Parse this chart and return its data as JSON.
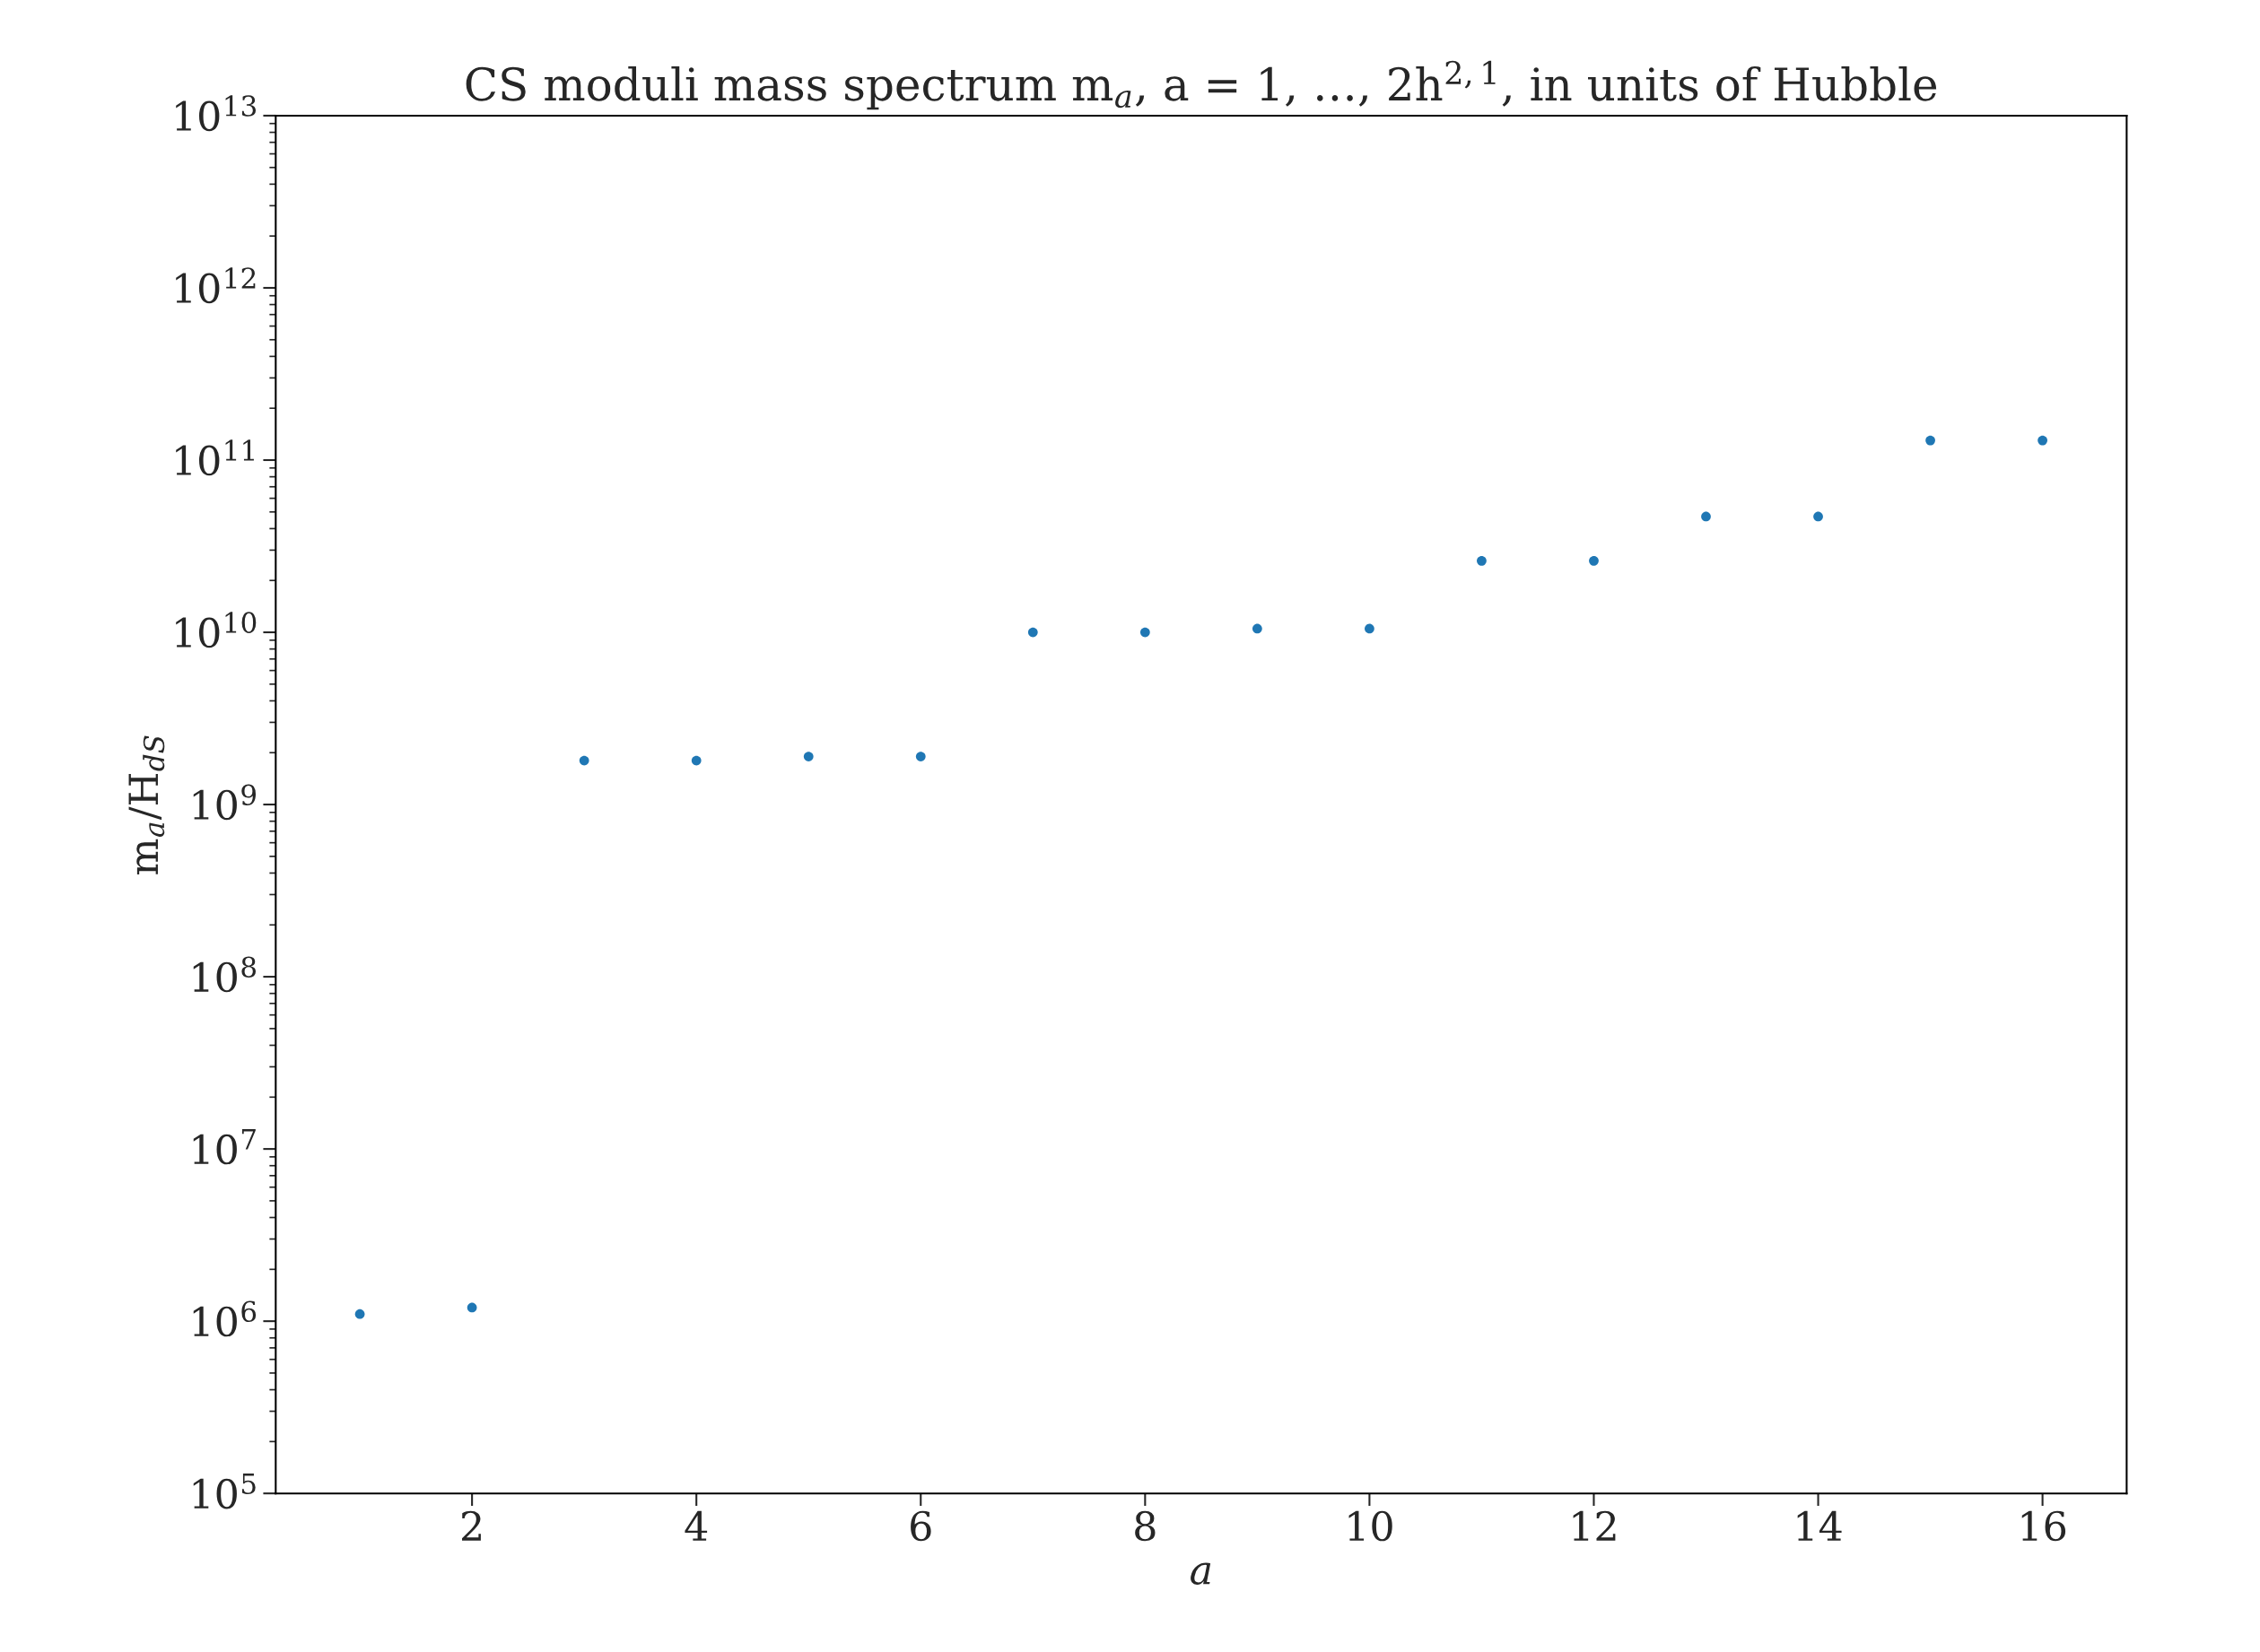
{
  "chart_data": {
    "type": "scatter",
    "title": "CS moduli mass spectrum m$_{a}$, a = 1, …, 2h$^{2,1}$, in units of Hubble",
    "xlabel": "a",
    "ylabel": "m$_{a}$/H$_{dS}$",
    "x": [
      1,
      2,
      3,
      4,
      5,
      6,
      7,
      8,
      9,
      10,
      11,
      12,
      13,
      14,
      15,
      16
    ],
    "series": [
      {
        "color": "#1f77b4",
        "values": [
          1100000.0,
          1200000.0,
          1800000000.0,
          1800000000.0,
          1900000000.0,
          1900000000.0,
          10000000000.0,
          10000000000.0,
          10500000000.0,
          10500000000.0,
          26000000000.0,
          26000000000.0,
          47000000000.0,
          47000000000.0,
          130000000000.0,
          130000000000.0
        ]
      }
    ],
    "log": "y",
    "marker": "circle",
    "grid": false,
    "legend": false,
    "xlim": [
      0.25,
      16.75
    ],
    "xticks": [
      2,
      4,
      6,
      8,
      10,
      12,
      14,
      16
    ],
    "ylim": [
      100000.0,
      10000000000000.0
    ],
    "yticks": [
      {
        "value": 100000.0,
        "label": "10$^{5}$"
      },
      {
        "value": 1000000.0,
        "label": "10$^{6}$"
      },
      {
        "value": 10000000.0,
        "label": "10$^{7}$"
      },
      {
        "value": 100000000.0,
        "label": "10$^{8}$"
      },
      {
        "value": 1000000000.0,
        "label": "10$^{9}$"
      },
      {
        "value": 10000000000.0,
        "label": "10$^{10}$"
      },
      {
        "value": 100000000000.0,
        "label": "10$^{11}$"
      },
      {
        "value": 1000000000000.0,
        "label": "10$^{12}$"
      },
      {
        "value": 10000000000000.0,
        "label": "10$^{13}$"
      }
    ]
  }
}
